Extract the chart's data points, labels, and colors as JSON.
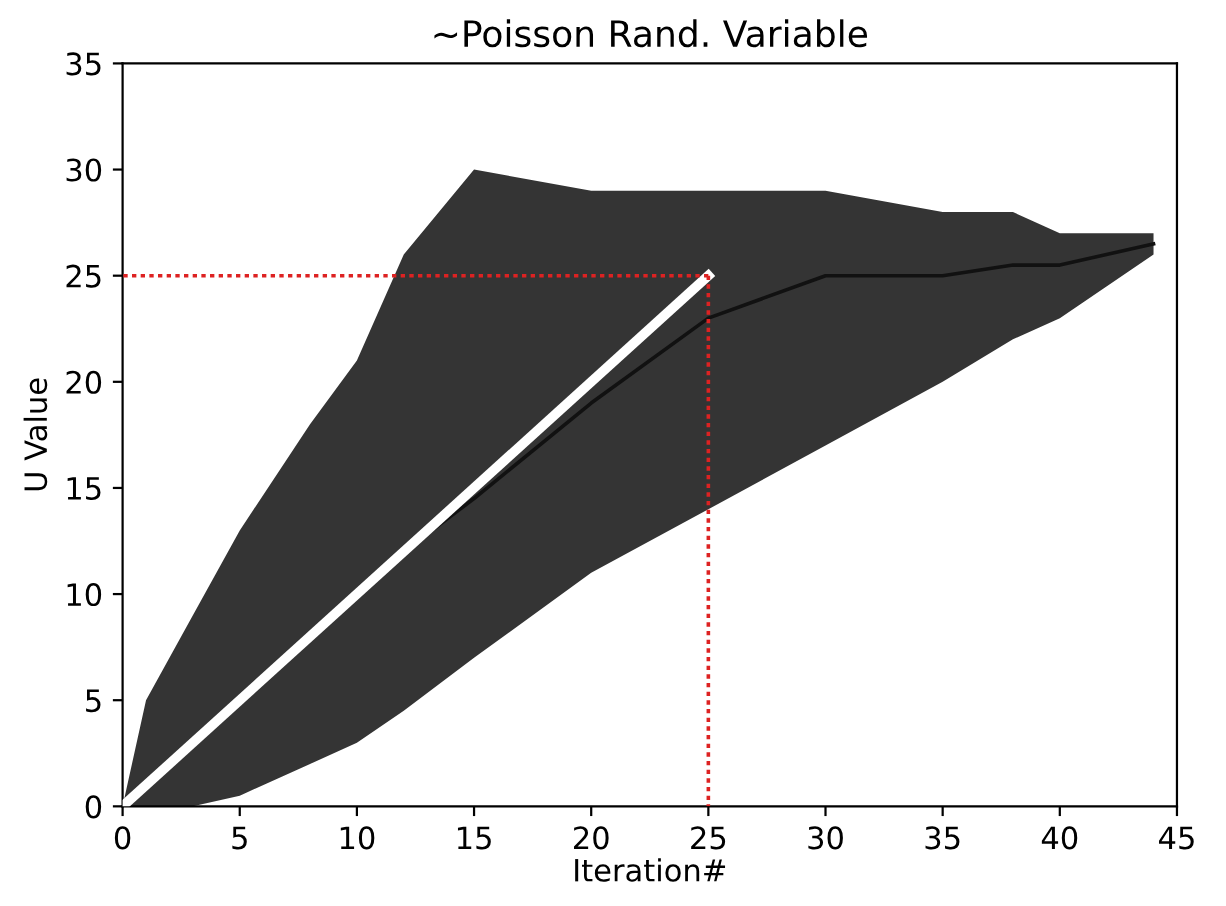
{
  "chart_data": {
    "type": "line",
    "title": "~Poisson Rand. Variable",
    "xlabel": "Iteration#",
    "ylabel": "U Value",
    "xlim": [
      0,
      45
    ],
    "xticks": [
      0,
      5,
      10,
      15,
      20,
      25,
      30,
      35,
      40,
      45
    ],
    "ylim": [
      0,
      35
    ],
    "yticks": [
      0,
      5,
      10,
      15,
      20,
      25,
      30,
      35
    ],
    "grid": false,
    "marker": "none",
    "series": [
      {
        "color": "#111111",
        "line_style": "solid",
        "x": [
          0,
          1,
          3,
          5,
          8,
          10,
          12,
          15,
          20,
          25,
          30,
          35,
          38,
          40,
          44
        ],
        "values": [
          0,
          1,
          3,
          5,
          8,
          10,
          12,
          14.5,
          19,
          23,
          25,
          25,
          25.5,
          25.5,
          26.5
        ],
        "lower": [
          0,
          0,
          0,
          0.5,
          2,
          3,
          4.5,
          7,
          11,
          14,
          17,
          20,
          22,
          23,
          26
        ],
        "upper": [
          0,
          5,
          9,
          13,
          18,
          21,
          26,
          30,
          29,
          29,
          29,
          28,
          28,
          27,
          27
        ]
      },
      {
        "color": "#ffffff",
        "line_style": "solid",
        "x": [
          0,
          25
        ],
        "values": [
          0,
          25
        ]
      },
      {
        "color": "#dd2222",
        "line_style": "dotted",
        "x": [
          25,
          0
        ],
        "values": [
          25,
          25
        ]
      },
      {
        "color": "#dd2222",
        "line_style": "dotted",
        "x": [
          25,
          25
        ],
        "values": [
          25,
          0
        ]
      }
    ]
  }
}
